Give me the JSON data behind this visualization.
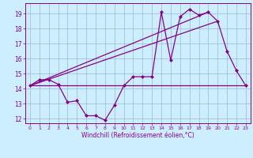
{
  "xlabel": "Windchill (Refroidissement éolien,°C)",
  "background_color": "#cceeff",
  "grid_color": "#99bbcc",
  "line_color": "#880088",
  "xlim": [
    -0.5,
    23.5
  ],
  "ylim": [
    11.7,
    19.7
  ],
  "yticks": [
    12,
    13,
    14,
    15,
    16,
    17,
    18,
    19
  ],
  "xticks": [
    0,
    1,
    2,
    3,
    4,
    5,
    6,
    7,
    8,
    9,
    10,
    11,
    12,
    13,
    14,
    15,
    16,
    17,
    18,
    19,
    20,
    21,
    22,
    23
  ],
  "series1_x": [
    0,
    1,
    2,
    3,
    4,
    5,
    6,
    7,
    8,
    9,
    10,
    11,
    12,
    13,
    14,
    15,
    16,
    17,
    18,
    19,
    20,
    21,
    22,
    23
  ],
  "series1_y": [
    14.2,
    14.6,
    14.6,
    14.3,
    13.1,
    13.2,
    12.2,
    12.2,
    11.9,
    12.9,
    14.2,
    14.8,
    14.8,
    14.8,
    19.1,
    15.9,
    18.8,
    19.3,
    18.9,
    19.1,
    18.5,
    16.5,
    15.2,
    14.2
  ],
  "series2_x": [
    0,
    23
  ],
  "series2_y": [
    14.2,
    14.2
  ],
  "series3_x": [
    0,
    20
  ],
  "series3_y": [
    14.2,
    18.5
  ],
  "series4_x": [
    0,
    19
  ],
  "series4_y": [
    14.2,
    19.1
  ]
}
